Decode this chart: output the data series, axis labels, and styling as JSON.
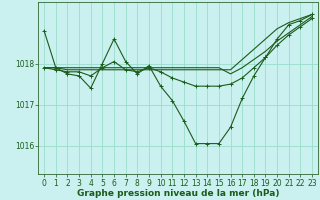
{
  "background_color": "#caf0f0",
  "grid_color": "#99ddcc",
  "line_color": "#1a5c1a",
  "marker_color": "#1a5c1a",
  "xlabel": "Graphe pression niveau de la mer (hPa)",
  "xlabel_fontsize": 6.5,
  "tick_fontsize": 5.5,
  "xlim": [
    -0.5,
    23.5
  ],
  "ylim": [
    1015.3,
    1019.5
  ],
  "yticks": [
    1016,
    1017,
    1018
  ],
  "series1_x": [
    0,
    1,
    2,
    3,
    4,
    5,
    6,
    7,
    8,
    9,
    10,
    11,
    12,
    13,
    14,
    15,
    16,
    17,
    18,
    19,
    20,
    21,
    22,
    23
  ],
  "series1_y": [
    1018.8,
    1017.9,
    1017.75,
    1017.7,
    1017.4,
    1018.0,
    1018.6,
    1018.05,
    1017.75,
    1017.95,
    1017.45,
    1017.1,
    1016.6,
    1016.05,
    1016.05,
    1016.05,
    1016.45,
    1017.15,
    1017.7,
    1018.15,
    1018.6,
    1018.95,
    1019.05,
    1019.2
  ],
  "series2_x": [
    0,
    1,
    2,
    3,
    4,
    5,
    6,
    7,
    8,
    9,
    10,
    11,
    12,
    13,
    14,
    15,
    16,
    17,
    18,
    19,
    20,
    21,
    22,
    23
  ],
  "series2_y": [
    1017.9,
    1017.9,
    1017.85,
    1017.85,
    1017.85,
    1017.85,
    1017.85,
    1017.85,
    1017.85,
    1017.85,
    1017.85,
    1017.85,
    1017.85,
    1017.85,
    1017.85,
    1017.85,
    1017.85,
    1018.1,
    1018.35,
    1018.6,
    1018.85,
    1019.0,
    1019.1,
    1019.2
  ],
  "series3_x": [
    0,
    1,
    2,
    3,
    4,
    5,
    6,
    7,
    8,
    9,
    10,
    11,
    12,
    13,
    14,
    15,
    16,
    17,
    18,
    19,
    20,
    21,
    22,
    23
  ],
  "series3_y": [
    1017.9,
    1017.85,
    1017.8,
    1017.8,
    1017.7,
    1017.9,
    1018.05,
    1017.85,
    1017.8,
    1017.9,
    1017.8,
    1017.65,
    1017.55,
    1017.45,
    1017.45,
    1017.45,
    1017.5,
    1017.65,
    1017.9,
    1018.15,
    1018.45,
    1018.7,
    1018.9,
    1019.1
  ],
  "series4_x": [
    0,
    10,
    11,
    12,
    13,
    14,
    15,
    16,
    17,
    18,
    19,
    20,
    21,
    22,
    23
  ],
  "series4_y": [
    1017.9,
    1017.9,
    1017.9,
    1017.9,
    1017.9,
    1017.9,
    1017.9,
    1017.75,
    1017.9,
    1018.1,
    1018.3,
    1018.55,
    1018.75,
    1018.95,
    1019.15
  ]
}
